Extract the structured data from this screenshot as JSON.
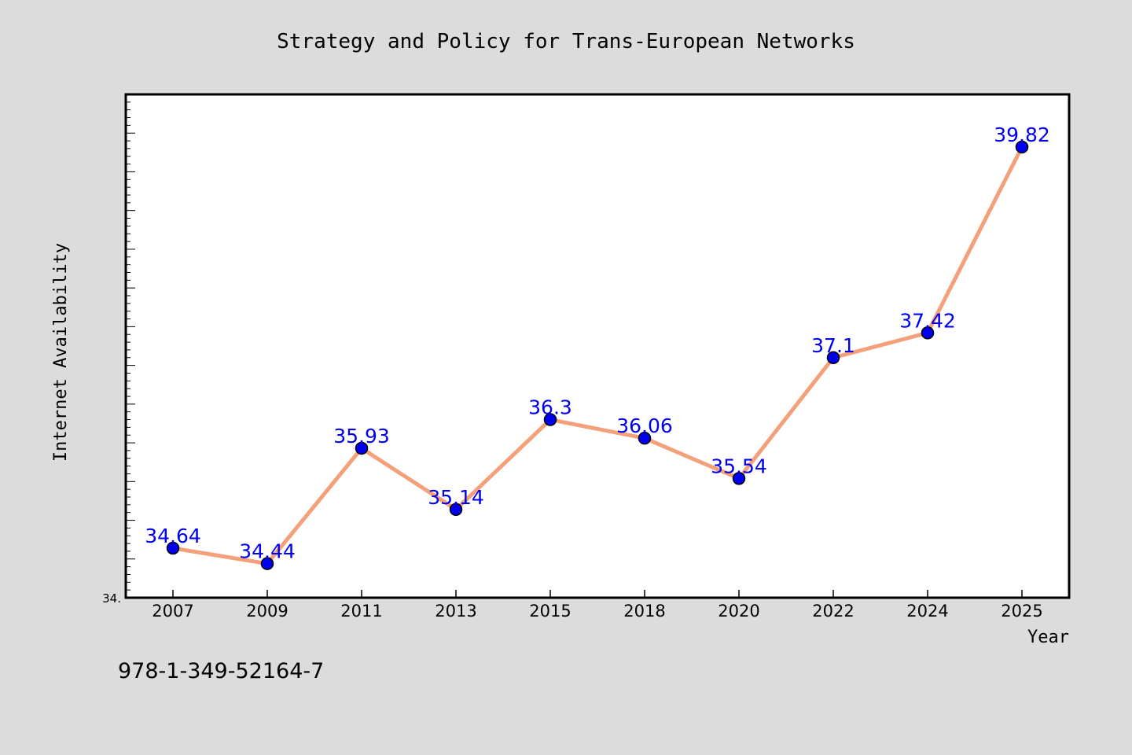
{
  "chart_data": {
    "type": "line",
    "title": "Strategy and Policy for Trans-European Networks",
    "xlabel": "Year",
    "ylabel": "Internet Availability",
    "categories": [
      "2007",
      "2009",
      "2011",
      "2013",
      "2015",
      "2018",
      "2020",
      "2022",
      "2024",
      "2025"
    ],
    "series": [
      {
        "values": [
          34.64,
          34.44,
          35.93,
          35.14,
          36.3,
          36.06,
          35.54,
          37.1,
          37.42,
          39.82
        ],
        "labels": [
          "34.64",
          "34.44",
          "35.93",
          "35.14",
          "36.3",
          "36.06",
          "35.54",
          "37.1",
          "37.42",
          "39.82"
        ]
      }
    ],
    "ylim": [
      34.0,
      40.5
    ],
    "y_min_tick_label": "34.",
    "grid": false,
    "colors": {
      "line": "#f4a07a",
      "marker": "#0000ee",
      "data_label": "#0000ee",
      "background": "#dcdcdc",
      "plot_background": "#ffffff"
    }
  },
  "footer": {
    "isbn": "978-1-349-52164-7"
  }
}
